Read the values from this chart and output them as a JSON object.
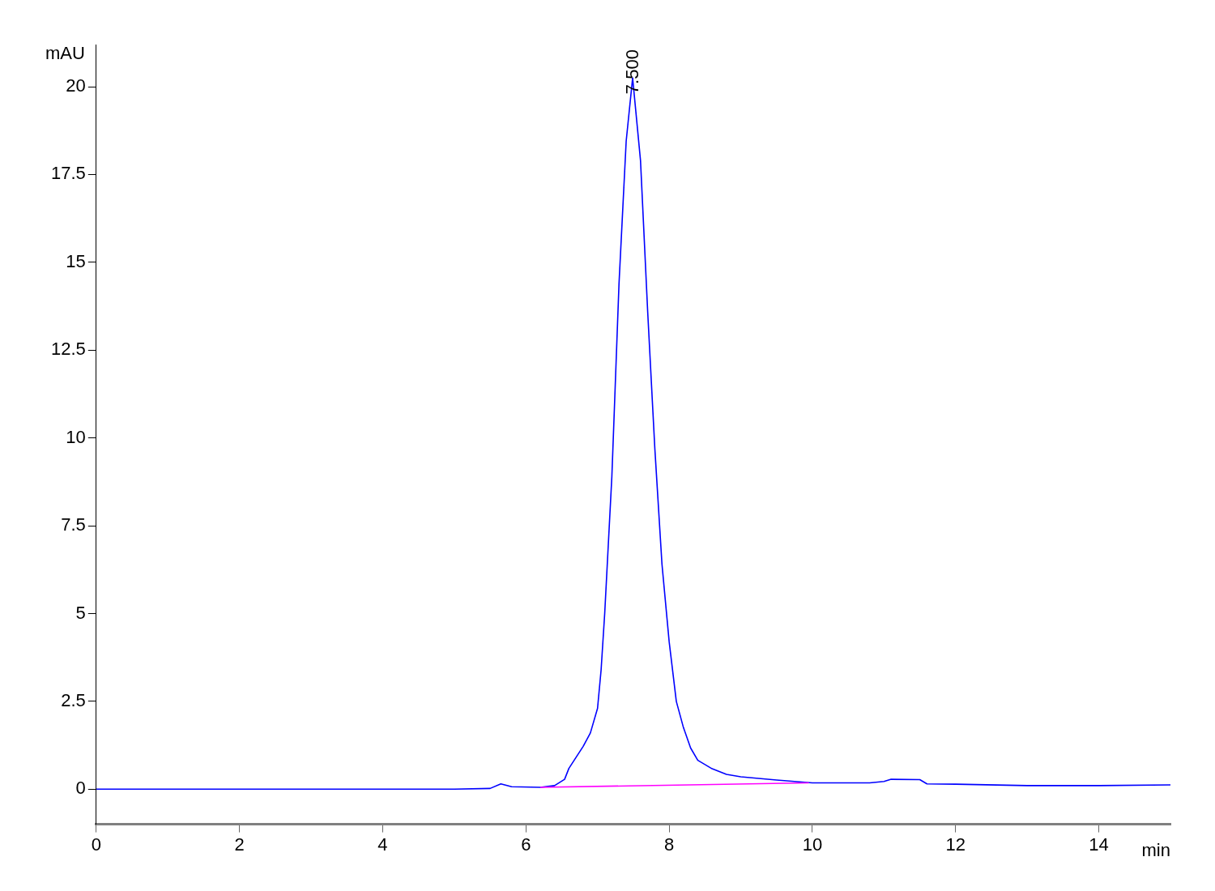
{
  "chart_data": {
    "type": "line",
    "xlabel": "min",
    "ylabel": "mAU",
    "xlim": [
      0,
      15
    ],
    "ylim": [
      -1,
      21.2
    ],
    "xticks": [
      0,
      2,
      4,
      6,
      8,
      10,
      12,
      14
    ],
    "yticks": [
      0,
      2.5,
      5,
      7.5,
      10,
      12.5,
      15,
      17.5,
      20
    ],
    "grid": false,
    "legend": false,
    "marker": "none",
    "line_style": "solid",
    "annotations": [
      {
        "text": "7.500",
        "x": 7.5,
        "y": 20.25
      }
    ],
    "series": [
      {
        "color": "#0000ff",
        "x": [
          0,
          1,
          2,
          3,
          4,
          5,
          5.5,
          5.65,
          5.8,
          6.2,
          6.4,
          6.54,
          6.6,
          6.8,
          6.9,
          7.0,
          7.05,
          7.1,
          7.2,
          7.3,
          7.4,
          7.49,
          7.6,
          7.7,
          7.8,
          7.9,
          8.0,
          8.1,
          8.2,
          8.3,
          8.4,
          8.6,
          8.8,
          9.0,
          9.5,
          10,
          10.8,
          11.0,
          11.1,
          11.5,
          11.6,
          12,
          13,
          14,
          15
        ],
        "values": [
          0,
          0,
          0,
          0,
          0,
          0,
          0.02,
          0.15,
          0.07,
          0.05,
          0.1,
          0.28,
          0.59,
          1.22,
          1.6,
          2.3,
          3.4,
          5.0,
          8.9,
          14.4,
          18.45,
          20.25,
          17.9,
          13.6,
          9.7,
          6.4,
          4.2,
          2.5,
          1.75,
          1.17,
          0.82,
          0.58,
          0.42,
          0.35,
          0.26,
          0.18,
          0.18,
          0.22,
          0.28,
          0.27,
          0.15,
          0.14,
          0.1,
          0.1,
          0.12
        ]
      },
      {
        "color": "#ff00ff",
        "x": [
          6.2,
          9.95
        ],
        "values": [
          0.05,
          0.18
        ]
      }
    ]
  }
}
